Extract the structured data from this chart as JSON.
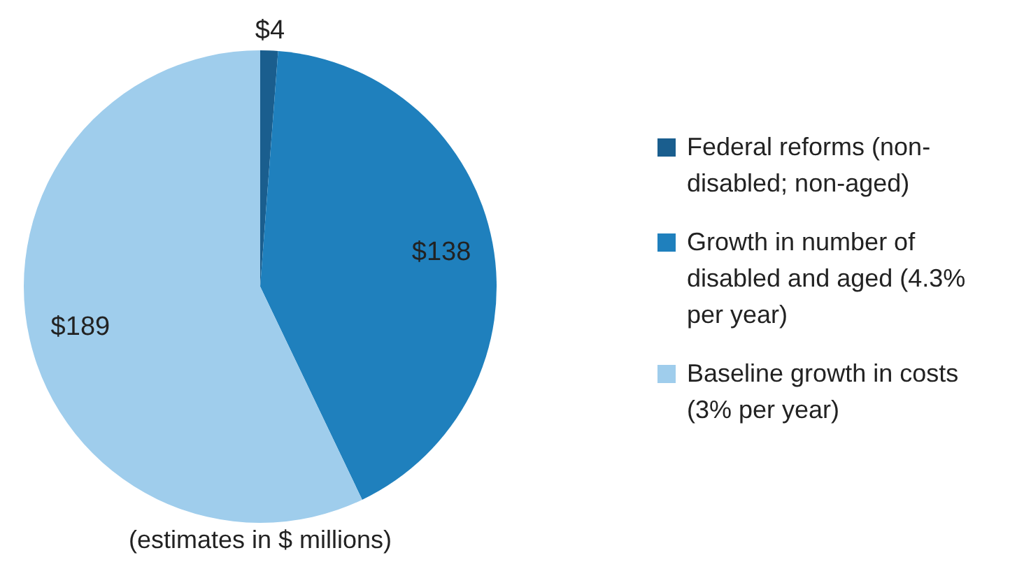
{
  "chart_data": {
    "type": "pie",
    "categories": [
      "Federal reforms (non-disabled; non-aged)",
      "Growth in number of disabled and aged (4.3% per year)",
      "Baseline growth in costs (3% per year)"
    ],
    "values": [
      4,
      138,
      189
    ],
    "colors": [
      "#1a5e8e",
      "#1f80bd",
      "#9fcdec"
    ],
    "value_labels": [
      "$4",
      "$138",
      "$189"
    ],
    "legend": "right",
    "annotations": [
      "(estimates in $ millions)"
    ]
  }
}
